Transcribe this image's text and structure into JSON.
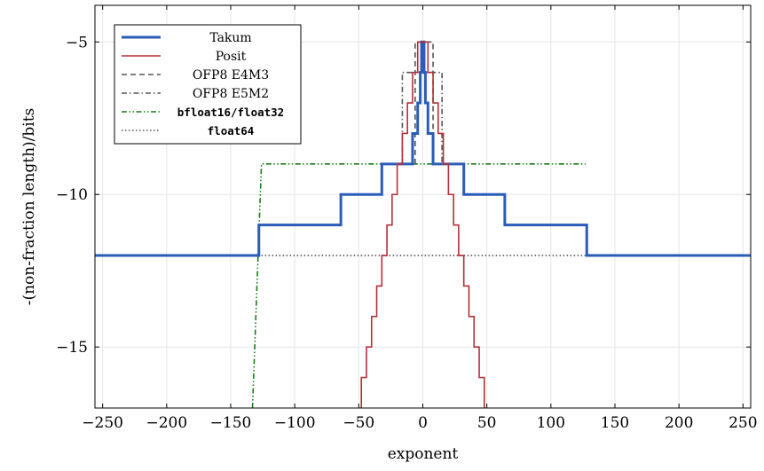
{
  "chart_data": {
    "type": "line",
    "title": "",
    "xlabel": "exponent",
    "ylabel": "-(non-fraction length)/bits",
    "xlim": [
      -256,
      256
    ],
    "ylim": [
      -17,
      -3.8
    ],
    "xticks": [
      -250,
      -200,
      -150,
      -100,
      -50,
      0,
      50,
      100,
      150,
      200,
      250
    ],
    "yticks": [
      -5,
      -10,
      -15
    ],
    "xtick_labels": [
      "−250",
      "−200",
      "−150",
      "−100",
      "−50",
      "0",
      "50",
      "100",
      "150",
      "200",
      "250"
    ],
    "ytick_labels": [
      "−5",
      "−10",
      "−15"
    ],
    "grid": true,
    "legend_position": "top-left",
    "series": [
      {
        "name": "Takum",
        "color": "#2a5cb8",
        "style": "solid",
        "weight": "bold",
        "x": [
          -256,
          -128,
          -128,
          -64,
          -64,
          -32,
          -32,
          -16,
          -16,
          -8,
          -8,
          -4,
          -4,
          -2,
          -2,
          -1,
          -1,
          1,
          1,
          2,
          2,
          4,
          4,
          8,
          8,
          16,
          16,
          32,
          32,
          64,
          64,
          128,
          128,
          256
        ],
        "y": [
          -12,
          -12,
          -11,
          -11,
          -10,
          -10,
          -9,
          -9,
          -9,
          -9,
          -8,
          -8,
          -7,
          -7,
          -6,
          -6,
          -5,
          -5,
          -6,
          -6,
          -7,
          -7,
          -8,
          -8,
          -9,
          -9,
          -9,
          -9,
          -10,
          -10,
          -11,
          -11,
          -12,
          -12
        ]
      },
      {
        "name": "Posit",
        "color": "#b3303a",
        "style": "solid",
        "weight": "normal",
        "x": [
          -48,
          -48,
          -44,
          -44,
          -40,
          -40,
          -36,
          -36,
          -32,
          -32,
          -28,
          -28,
          -24,
          -24,
          -20,
          -20,
          -16,
          -16,
          -12,
          -12,
          -8,
          -8,
          -4,
          -4,
          4,
          4,
          8,
          8,
          12,
          12,
          16,
          16,
          20,
          20,
          24,
          24,
          28,
          28,
          32,
          32,
          36,
          36,
          40,
          40,
          44,
          44,
          48,
          48
        ],
        "y": [
          -17,
          -16,
          -16,
          -15,
          -15,
          -14,
          -14,
          -13,
          -13,
          -12,
          -12,
          -11,
          -11,
          -10,
          -10,
          -9,
          -9,
          -8,
          -8,
          -7,
          -7,
          -6,
          -6,
          -5,
          -5,
          -6,
          -6,
          -7,
          -7,
          -8,
          -8,
          -9,
          -9,
          -10,
          -10,
          -11,
          -11,
          -12,
          -12,
          -13,
          -13,
          -14,
          -14,
          -15,
          -15,
          -16,
          -16,
          -17
        ]
      },
      {
        "name": "OFP8 E4M3",
        "color": "#555555",
        "style": "dashed",
        "weight": "normal",
        "x": [
          -6,
          -6,
          8,
          8
        ],
        "y": [
          -9,
          -5,
          -5,
          -9
        ]
      },
      {
        "name": "OFP8 E5M2",
        "color": "#555555",
        "style": "dashdot",
        "weight": "normal",
        "x": [
          -16,
          -16,
          15,
          15
        ],
        "y": [
          -9,
          -6,
          -6,
          -9
        ]
      },
      {
        "name": "bfloat16/float32",
        "color": "#1a7a1a",
        "style": "dashdotdot",
        "weight": "normal",
        "mono": true,
        "x": [
          -133,
          -126,
          127
        ],
        "y": [
          -17,
          -9,
          -9
        ]
      },
      {
        "name": "float64",
        "color": "#555555",
        "style": "dotted",
        "weight": "normal",
        "mono": true,
        "x": [
          -126,
          127
        ],
        "y": [
          -12,
          -12
        ]
      }
    ]
  }
}
